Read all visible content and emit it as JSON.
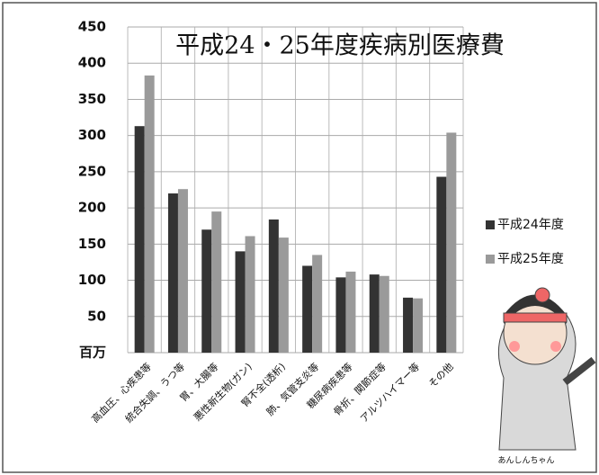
{
  "chart_data": {
    "type": "bar",
    "title": "平成24・25年度疾病別医療費",
    "categories": [
      "高血圧、心疾患等",
      "統合失調、うつ等",
      "胃、大腸等",
      "悪性新生物(ガン)",
      "腎不全(透析)",
      "肺、気管支炎等",
      "糖尿病疾患等",
      "骨折、関節症等",
      "アルツハイマー等",
      "その他"
    ],
    "series": [
      {
        "name": "平成24年度",
        "color": "#333333",
        "values": [
          313,
          220,
          170,
          140,
          184,
          120,
          104,
          108,
          76,
          243
        ]
      },
      {
        "name": "平成25年度",
        "color": "#9a9a9a",
        "values": [
          383,
          226,
          195,
          161,
          159,
          135,
          112,
          106,
          75,
          304
        ]
      }
    ],
    "ylim": [
      0,
      450
    ],
    "yticks": [
      {
        "value": 0,
        "label": "百万"
      },
      50,
      100,
      150,
      200,
      250,
      300,
      350,
      400,
      450
    ],
    "grid": true,
    "legend": "right"
  },
  "caption": "あんしんちゃん"
}
